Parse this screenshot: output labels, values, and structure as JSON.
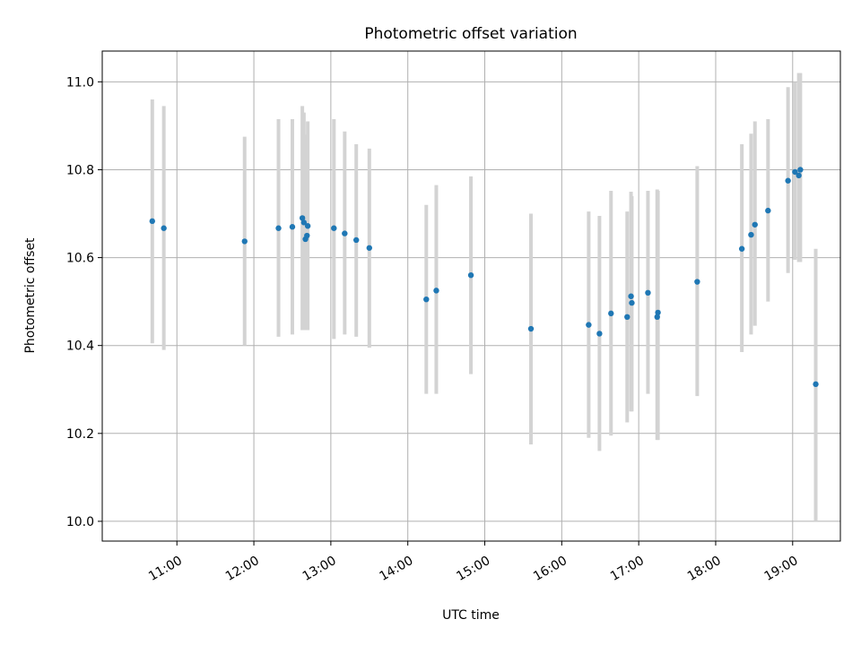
{
  "chart_data": {
    "type": "scatter",
    "title": "Photometric offset variation",
    "xlabel": "UTC time",
    "ylabel": "Photometric offset",
    "x_unit": "hour (UTC)",
    "xlim": [
      10.03,
      19.62
    ],
    "ylim": [
      9.955,
      11.07
    ],
    "x_ticks": [
      {
        "value": 11,
        "label": "11:00"
      },
      {
        "value": 12,
        "label": "12:00"
      },
      {
        "value": 13,
        "label": "13:00"
      },
      {
        "value": 14,
        "label": "14:00"
      },
      {
        "value": 15,
        "label": "15:00"
      },
      {
        "value": 16,
        "label": "16:00"
      },
      {
        "value": 17,
        "label": "17:00"
      },
      {
        "value": 18,
        "label": "18:00"
      },
      {
        "value": 19,
        "label": "19:00"
      }
    ],
    "y_ticks": [
      {
        "value": 10.0,
        "label": "10.0"
      },
      {
        "value": 10.2,
        "label": "10.2"
      },
      {
        "value": 10.4,
        "label": "10.4"
      },
      {
        "value": 10.6,
        "label": "10.6"
      },
      {
        "value": 10.8,
        "label": "10.8"
      },
      {
        "value": 11.0,
        "label": "11.0"
      }
    ],
    "grid": true,
    "colors": {
      "point": "#1f77b4",
      "errorbar": "#d3d3d3",
      "grid": "#b0b0b0",
      "frame": "#000000"
    },
    "points": [
      {
        "x": 10.68,
        "y": 10.683,
        "err_low": 10.405,
        "err_high": 10.96
      },
      {
        "x": 10.83,
        "y": 10.667,
        "err_low": 10.39,
        "err_high": 10.945
      },
      {
        "x": 11.88,
        "y": 10.637,
        "err_low": 10.4,
        "err_high": 10.875
      },
      {
        "x": 12.32,
        "y": 10.667,
        "err_low": 10.42,
        "err_high": 10.915
      },
      {
        "x": 12.5,
        "y": 10.67,
        "err_low": 10.425,
        "err_high": 10.915
      },
      {
        "x": 12.63,
        "y": 10.69,
        "err_low": 10.435,
        "err_high": 10.945
      },
      {
        "x": 12.65,
        "y": 10.68,
        "err_low": 10.435,
        "err_high": 10.93
      },
      {
        "x": 12.67,
        "y": 10.642,
        "err_low": 10.435,
        "err_high": 10.88
      },
      {
        "x": 12.69,
        "y": 10.65,
        "err_low": 10.435,
        "err_high": 10.865
      },
      {
        "x": 12.7,
        "y": 10.672,
        "err_low": 10.435,
        "err_high": 10.91
      },
      {
        "x": 13.04,
        "y": 10.667,
        "err_low": 10.415,
        "err_high": 10.915
      },
      {
        "x": 13.18,
        "y": 10.655,
        "err_low": 10.425,
        "err_high": 10.887
      },
      {
        "x": 13.33,
        "y": 10.64,
        "err_low": 10.42,
        "err_high": 10.858
      },
      {
        "x": 13.5,
        "y": 10.622,
        "err_low": 10.395,
        "err_high": 10.848
      },
      {
        "x": 14.24,
        "y": 10.505,
        "err_low": 10.29,
        "err_high": 10.72
      },
      {
        "x": 14.37,
        "y": 10.525,
        "err_low": 10.29,
        "err_high": 10.765
      },
      {
        "x": 14.82,
        "y": 10.56,
        "err_low": 10.335,
        "err_high": 10.785
      },
      {
        "x": 15.6,
        "y": 10.438,
        "err_low": 10.175,
        "err_high": 10.7
      },
      {
        "x": 16.35,
        "y": 10.447,
        "err_low": 10.19,
        "err_high": 10.705
      },
      {
        "x": 16.49,
        "y": 10.427,
        "err_low": 10.16,
        "err_high": 10.695
      },
      {
        "x": 16.64,
        "y": 10.473,
        "err_low": 10.195,
        "err_high": 10.752
      },
      {
        "x": 16.85,
        "y": 10.465,
        "err_low": 10.225,
        "err_high": 10.705
      },
      {
        "x": 16.9,
        "y": 10.512,
        "err_low": 10.25,
        "err_high": 10.75
      },
      {
        "x": 16.91,
        "y": 10.497,
        "err_low": 10.25,
        "err_high": 10.74
      },
      {
        "x": 17.12,
        "y": 10.52,
        "err_low": 10.29,
        "err_high": 10.752
      },
      {
        "x": 17.24,
        "y": 10.465,
        "err_low": 10.185,
        "err_high": 10.755
      },
      {
        "x": 17.25,
        "y": 10.475,
        "err_low": 10.185,
        "err_high": 10.752
      },
      {
        "x": 17.76,
        "y": 10.545,
        "err_low": 10.285,
        "err_high": 10.808
      },
      {
        "x": 18.34,
        "y": 10.62,
        "err_low": 10.385,
        "err_high": 10.858
      },
      {
        "x": 18.46,
        "y": 10.652,
        "err_low": 10.425,
        "err_high": 10.882
      },
      {
        "x": 18.51,
        "y": 10.675,
        "err_low": 10.445,
        "err_high": 10.91
      },
      {
        "x": 18.68,
        "y": 10.707,
        "err_low": 10.5,
        "err_high": 10.915
      },
      {
        "x": 18.94,
        "y": 10.775,
        "err_low": 10.565,
        "err_high": 10.988
      },
      {
        "x": 19.03,
        "y": 10.795,
        "err_low": 10.595,
        "err_high": 11.0
      },
      {
        "x": 19.08,
        "y": 10.787,
        "err_low": 10.59,
        "err_high": 11.02
      },
      {
        "x": 19.1,
        "y": 10.8,
        "err_low": 10.59,
        "err_high": 11.02
      },
      {
        "x": 19.3,
        "y": 10.312,
        "err_low": 10.0,
        "err_high": 10.62
      }
    ]
  }
}
